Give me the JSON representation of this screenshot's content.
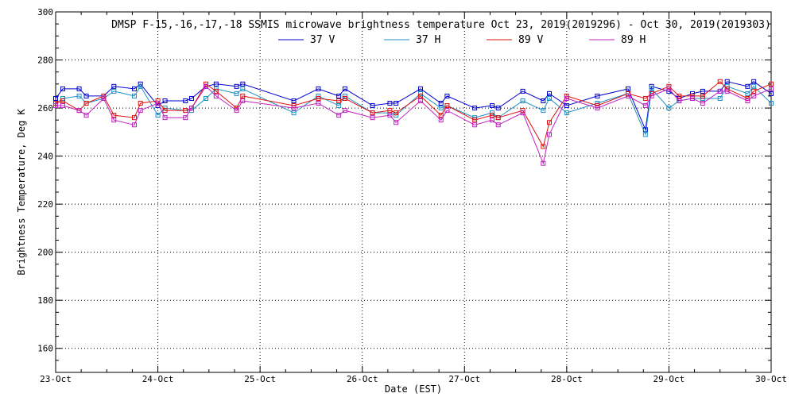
{
  "chart_data": {
    "type": "line",
    "title": "DMSP F-15,-16,-17,-18 SSMIS microwave brightness temperature Oct 23, 2019(2019296) - Oct 30, 2019(2019303)",
    "xlabel": "Date (EST)",
    "ylabel": "Brightness Temperature, Deg K",
    "xlim": [
      0,
      7
    ],
    "ylim": [
      150,
      300
    ],
    "y_ticks": [
      160,
      180,
      200,
      220,
      240,
      260,
      280,
      300
    ],
    "x_tick_labels": [
      "23-Oct",
      "24-Oct",
      "25-Oct",
      "26-Oct",
      "27-Oct",
      "28-Oct",
      "29-Oct",
      "30-Oct"
    ],
    "grid": true,
    "legend_position": "top-center",
    "series": [
      {
        "name": "37 V",
        "color": "#0000cc",
        "x": [
          0.0,
          0.07,
          0.23,
          0.3,
          0.47,
          0.57,
          0.77,
          0.83,
          1.0,
          1.07,
          1.27,
          1.33,
          1.47,
          1.57,
          1.77,
          1.83,
          2.33,
          2.57,
          2.77,
          2.83,
          3.1,
          3.27,
          3.33,
          3.57,
          3.77,
          3.83,
          4.1,
          4.27,
          4.33,
          4.57,
          4.77,
          4.83,
          5.0,
          5.3,
          5.6,
          5.77,
          5.83,
          6.0,
          6.1,
          6.23,
          6.33,
          6.5,
          6.57,
          6.77,
          6.83,
          7.0
        ],
        "values": [
          264,
          268,
          268,
          265,
          265,
          269,
          268,
          270,
          261,
          263,
          263,
          264,
          269,
          270,
          269,
          270,
          263,
          268,
          265,
          268,
          261,
          262,
          262,
          268,
          262,
          265,
          260,
          261,
          260,
          267,
          263,
          266,
          261,
          265,
          268,
          251,
          269,
          267,
          264,
          266,
          267,
          267,
          271,
          269,
          271,
          266
        ]
      },
      {
        "name": "37 H",
        "color": "#1e90c8",
        "x": [
          0.0,
          0.07,
          0.23,
          0.3,
          0.47,
          0.57,
          0.77,
          0.83,
          1.0,
          1.07,
          1.27,
          1.33,
          1.47,
          1.57,
          1.77,
          1.83,
          2.33,
          2.57,
          2.77,
          2.83,
          3.1,
          3.27,
          3.33,
          3.57,
          3.77,
          3.83,
          4.1,
          4.27,
          4.33,
          4.57,
          4.77,
          4.83,
          5.0,
          5.3,
          5.6,
          5.77,
          5.83,
          6.0,
          6.1,
          6.23,
          6.33,
          6.5,
          6.57,
          6.77,
          6.83,
          7.0
        ],
        "values": [
          262,
          264,
          265,
          262,
          264,
          267,
          265,
          269,
          257,
          260,
          259,
          259,
          264,
          268,
          266,
          268,
          258,
          265,
          261,
          265,
          258,
          258,
          257,
          266,
          260,
          261,
          256,
          258,
          256,
          263,
          259,
          264,
          258,
          262,
          266,
          249,
          268,
          260,
          263,
          264,
          264,
          264,
          269,
          266,
          269,
          262
        ]
      },
      {
        "name": "89 V",
        "color": "#e01010",
        "x": [
          0.0,
          0.07,
          0.23,
          0.3,
          0.47,
          0.57,
          0.77,
          0.83,
          1.0,
          1.07,
          1.27,
          1.33,
          1.47,
          1.57,
          1.77,
          1.83,
          2.33,
          2.57,
          2.77,
          2.83,
          3.1,
          3.27,
          3.33,
          3.57,
          3.77,
          3.83,
          4.1,
          4.27,
          4.33,
          4.57,
          4.77,
          4.83,
          5.0,
          5.3,
          5.6,
          5.77,
          5.83,
          6.0,
          6.1,
          6.23,
          6.33,
          6.5,
          6.57,
          6.77,
          6.83,
          7.0
        ],
        "values": [
          262,
          263,
          259,
          262,
          265,
          257,
          256,
          262,
          263,
          259,
          259,
          260,
          270,
          267,
          260,
          265,
          261,
          264,
          263,
          264,
          258,
          259,
          258,
          265,
          257,
          261,
          255,
          257,
          256,
          259,
          244,
          254,
          265,
          261,
          266,
          264,
          266,
          269,
          265,
          265,
          265,
          271,
          268,
          264,
          267,
          270
        ]
      },
      {
        "name": "89 H",
        "color": "#c020c0",
        "x": [
          0.0,
          0.07,
          0.23,
          0.3,
          0.47,
          0.57,
          0.77,
          0.83,
          1.0,
          1.07,
          1.27,
          1.33,
          1.47,
          1.57,
          1.77,
          1.83,
          2.33,
          2.57,
          2.77,
          2.83,
          3.1,
          3.27,
          3.33,
          3.57,
          3.77,
          3.83,
          4.1,
          4.27,
          4.33,
          4.57,
          4.77,
          4.83,
          5.0,
          5.3,
          5.6,
          5.77,
          5.83,
          6.0,
          6.1,
          6.23,
          6.33,
          6.5,
          6.57,
          6.77,
          6.83,
          7.0
        ],
        "values": [
          261,
          261,
          259,
          257,
          264,
          255,
          253,
          259,
          262,
          256,
          256,
          260,
          269,
          265,
          259,
          263,
          260,
          262,
          257,
          259,
          256,
          257,
          254,
          263,
          255,
          259,
          253,
          255,
          253,
          258,
          237,
          249,
          264,
          260,
          265,
          261,
          265,
          268,
          263,
          264,
          262,
          267,
          267,
          263,
          265,
          268
        ]
      }
    ]
  }
}
